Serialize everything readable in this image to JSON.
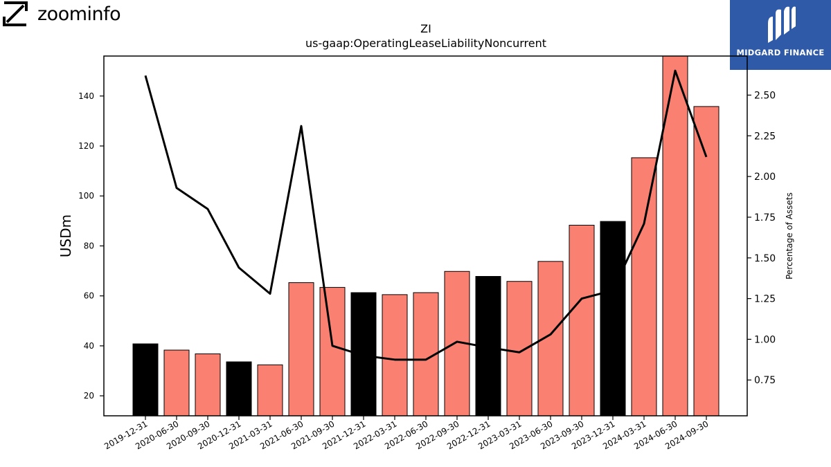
{
  "branding": {
    "left_logo_text": "zoominfo",
    "right_logo_text": "MIDGARD FINANCE",
    "right_logo_color": "#2f5aa8"
  },
  "chart_data": {
    "type": "bar",
    "title": "ZI",
    "subtitle": "us-gaap:OperatingLeaseLiabilityNoncurrent",
    "ylabel": "USDm",
    "y2label": "Percentage of Assets",
    "ylim": [
      12,
      156
    ],
    "y2lim": [
      0.53,
      2.74
    ],
    "yticks": [
      20,
      40,
      60,
      80,
      100,
      120,
      140
    ],
    "y2ticks": [
      "0.75",
      "1.00",
      "1.25",
      "1.50",
      "1.75",
      "2.00",
      "2.25",
      "2.50"
    ],
    "grid": false,
    "categories": [
      "2019-12-31",
      "2020-06-30",
      "2020-09-30",
      "2020-12-31",
      "2021-03-31",
      "2021-06-30",
      "2021-09-30",
      "2021-12-31",
      "2022-03-31",
      "2022-06-30",
      "2022-09-30",
      "2022-12-31",
      "2023-03-31",
      "2023-06-30",
      "2023-09-30",
      "2023-12-31",
      "2024-03-31",
      "2024-06-30",
      "2024-09-30"
    ],
    "series": [
      {
        "axis": "left",
        "kind": "bar",
        "values": [
          40.8,
          38.3,
          36.8,
          33.6,
          32.4,
          65.3,
          63.4,
          61.3,
          60.5,
          61.3,
          69.8,
          67.8,
          65.8,
          73.8,
          88.3,
          89.8,
          115.3,
          156.0,
          135.8
        ],
        "highlight": [
          true,
          false,
          false,
          true,
          false,
          false,
          false,
          true,
          false,
          false,
          false,
          true,
          false,
          false,
          false,
          true,
          false,
          false,
          false
        ]
      },
      {
        "axis": "right",
        "kind": "line",
        "values": [
          2.62,
          1.93,
          1.8,
          1.44,
          1.28,
          2.31,
          0.96,
          0.9,
          0.875,
          0.875,
          0.985,
          0.95,
          0.92,
          1.03,
          1.25,
          1.3,
          1.71,
          2.65,
          2.12
        ]
      }
    ],
    "colors": {
      "bar": "#fa8072",
      "bar_highlight": "#000000",
      "line": "#000000"
    }
  }
}
